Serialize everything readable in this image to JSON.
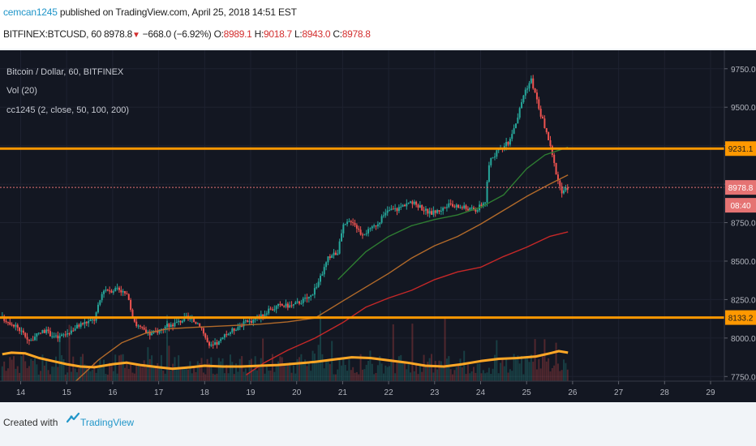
{
  "header": {
    "publisher": "cemcan1245",
    "published_text": "published on TradingView.com, April 25, 2018 14:51 EST",
    "symbol": "BITFINEX:BTCUSD, 60",
    "last": "8978.8",
    "change": "−668.0 (−6.92%)",
    "open_label": "O:",
    "open": "8989.1",
    "high_label": "H:",
    "high": "9018.7",
    "low_label": "L:",
    "low": "8943.0",
    "close_label": "C:",
    "close": "8978.8"
  },
  "legend": {
    "series_title": "Bitcoin / Dollar, 60, BITFINEX",
    "vol": "Vol (20)",
    "indicator": "cc1245 (2, close, 50, 100, 200)"
  },
  "footer": {
    "created_with": "Created with",
    "brand": "TradingView"
  },
  "colors": {
    "background": "#131722",
    "up": "#26a69a",
    "down": "#ef5350",
    "level": "#ff9800",
    "ma50": "#2e7d32",
    "ma100": "#b26a2a",
    "ma200": "#c62828",
    "volume_ma": "#ffa726",
    "price_tag": "#e57373"
  },
  "chart_data": {
    "type": "candlestick",
    "y_ticks": [
      7750,
      8000,
      8250,
      8500,
      8750,
      9000,
      9250,
      9500,
      9750
    ],
    "y_tick_labels": [
      "7750.0",
      "8000.0",
      "8250.0",
      "8500.0",
      "8750.0",
      "9000.0",
      "9250.0",
      "9500.0",
      "9750.0"
    ],
    "ylim": [
      7720,
      9870
    ],
    "x_ticks": [
      14,
      15,
      16,
      17,
      18,
      19,
      20,
      21,
      22,
      23,
      24,
      25,
      26,
      27,
      28,
      29
    ],
    "x_tick_labels": [
      "14",
      "15",
      "16",
      "17",
      "18",
      "19",
      "20",
      "21",
      "22",
      "23",
      "24",
      "25",
      "26",
      "27",
      "28",
      "29"
    ],
    "xlim": [
      13.55,
      29.3
    ],
    "horizontal_levels": [
      {
        "price": 9231.1,
        "label": "9231.1"
      },
      {
        "price": 8133.2,
        "label": "8133.2"
      }
    ],
    "last_price": {
      "price": 8978.8,
      "label": "8978.8",
      "countdown": "08:40"
    },
    "close_path": [
      [
        13.6,
        8130
      ],
      [
        13.9,
        8080
      ],
      [
        14.2,
        7980
      ],
      [
        14.5,
        8050
      ],
      [
        14.8,
        8000
      ],
      [
        15.0,
        8030
      ],
      [
        15.3,
        8090
      ],
      [
        15.6,
        8120
      ],
      [
        15.8,
        8320
      ],
      [
        16.0,
        8310
      ],
      [
        16.1,
        8330
      ],
      [
        16.3,
        8280
      ],
      [
        16.5,
        8090
      ],
      [
        16.8,
        8020
      ],
      [
        17.0,
        8050
      ],
      [
        17.2,
        8080
      ],
      [
        17.4,
        8100
      ],
      [
        17.6,
        8130
      ],
      [
        17.9,
        8090
      ],
      [
        18.1,
        7940
      ],
      [
        18.3,
        7970
      ],
      [
        18.5,
        8030
      ],
      [
        18.8,
        8090
      ],
      [
        19.0,
        8110
      ],
      [
        19.3,
        8160
      ],
      [
        19.6,
        8210
      ],
      [
        19.9,
        8210
      ],
      [
        20.1,
        8240
      ],
      [
        20.3,
        8270
      ],
      [
        20.5,
        8380
      ],
      [
        20.7,
        8530
      ],
      [
        20.9,
        8560
      ],
      [
        21.0,
        8720
      ],
      [
        21.2,
        8770
      ],
      [
        21.4,
        8680
      ],
      [
        21.6,
        8700
      ],
      [
        21.8,
        8760
      ],
      [
        22.0,
        8830
      ],
      [
        22.2,
        8840
      ],
      [
        22.4,
        8880
      ],
      [
        22.6,
        8870
      ],
      [
        22.9,
        8810
      ],
      [
        23.1,
        8830
      ],
      [
        23.3,
        8860
      ],
      [
        23.6,
        8850
      ],
      [
        23.9,
        8830
      ],
      [
        24.1,
        8890
      ],
      [
        24.2,
        9160
      ],
      [
        24.4,
        9220
      ],
      [
        24.6,
        9270
      ],
      [
        24.8,
        9430
      ],
      [
        24.95,
        9600
      ],
      [
        25.1,
        9680
      ],
      [
        25.3,
        9460
      ],
      [
        25.45,
        9320
      ],
      [
        25.6,
        9130
      ],
      [
        25.75,
        8940
      ],
      [
        25.9,
        8979
      ]
    ],
    "series": [
      {
        "name": "MA 50",
        "points": [
          [
            20.9,
            8380
          ],
          [
            21.5,
            8560
          ],
          [
            22.0,
            8660
          ],
          [
            22.5,
            8730
          ],
          [
            23.0,
            8770
          ],
          [
            23.5,
            8800
          ],
          [
            24.0,
            8850
          ],
          [
            24.5,
            8930
          ],
          [
            25.0,
            9100
          ],
          [
            25.4,
            9190
          ],
          [
            25.9,
            9240
          ]
        ]
      },
      {
        "name": "MA 100",
        "points": [
          [
            15.2,
            7720
          ],
          [
            15.7,
            7860
          ],
          [
            16.2,
            7970
          ],
          [
            16.7,
            8030
          ],
          [
            17.2,
            8060
          ],
          [
            17.8,
            8070
          ],
          [
            18.5,
            8080
          ],
          [
            19.2,
            8090
          ],
          [
            19.8,
            8105
          ],
          [
            20.4,
            8130
          ],
          [
            21.0,
            8240
          ],
          [
            21.5,
            8330
          ],
          [
            22.0,
            8420
          ],
          [
            22.5,
            8520
          ],
          [
            23.0,
            8600
          ],
          [
            23.5,
            8660
          ],
          [
            24.0,
            8740
          ],
          [
            24.5,
            8830
          ],
          [
            25.0,
            8920
          ],
          [
            25.5,
            9000
          ],
          [
            25.9,
            9060
          ]
        ]
      },
      {
        "name": "MA 200",
        "points": [
          [
            18.9,
            7760
          ],
          [
            19.3,
            7840
          ],
          [
            19.8,
            7920
          ],
          [
            20.4,
            8000
          ],
          [
            21.0,
            8100
          ],
          [
            21.5,
            8200
          ],
          [
            22.0,
            8260
          ],
          [
            22.5,
            8310
          ],
          [
            23.0,
            8380
          ],
          [
            23.5,
            8430
          ],
          [
            24.0,
            8460
          ],
          [
            24.5,
            8530
          ],
          [
            25.0,
            8590
          ],
          [
            25.5,
            8660
          ],
          [
            25.9,
            8690
          ]
        ]
      },
      {
        "name": "Volume MA",
        "points": [
          [
            13.6,
            7895
          ],
          [
            13.8,
            7905
          ],
          [
            14.1,
            7900
          ],
          [
            14.4,
            7870
          ],
          [
            14.7,
            7850
          ],
          [
            15.0,
            7830
          ],
          [
            15.3,
            7815
          ],
          [
            15.6,
            7810
          ],
          [
            16.0,
            7830
          ],
          [
            16.3,
            7840
          ],
          [
            16.6,
            7825
          ],
          [
            17.0,
            7810
          ],
          [
            17.3,
            7800
          ],
          [
            17.7,
            7810
          ],
          [
            18.0,
            7820
          ],
          [
            18.4,
            7815
          ],
          [
            18.8,
            7815
          ],
          [
            19.2,
            7820
          ],
          [
            19.6,
            7825
          ],
          [
            20.0,
            7835
          ],
          [
            20.4,
            7845
          ],
          [
            20.8,
            7860
          ],
          [
            21.2,
            7875
          ],
          [
            21.6,
            7870
          ],
          [
            22.0,
            7855
          ],
          [
            22.4,
            7840
          ],
          [
            22.8,
            7820
          ],
          [
            23.2,
            7815
          ],
          [
            23.6,
            7830
          ],
          [
            24.0,
            7850
          ],
          [
            24.4,
            7865
          ],
          [
            24.8,
            7870
          ],
          [
            25.2,
            7880
          ],
          [
            25.5,
            7900
          ],
          [
            25.7,
            7915
          ],
          [
            25.9,
            7905
          ]
        ]
      }
    ]
  }
}
